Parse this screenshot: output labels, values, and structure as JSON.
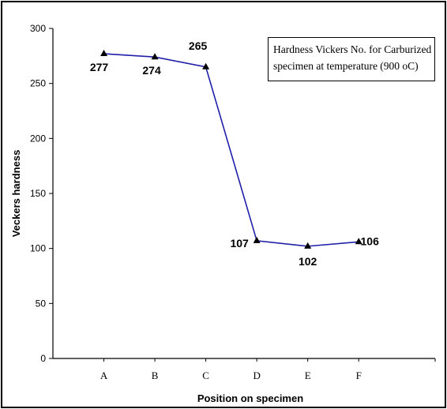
{
  "chart_data": {
    "type": "line",
    "categories": [
      "A",
      "B",
      "C",
      "D",
      "E",
      "F"
    ],
    "series": [
      {
        "name": "",
        "values": [
          277,
          274,
          265,
          107,
          102,
          106
        ]
      }
    ],
    "data_labels": [
      "277",
      "274",
      "265",
      "107",
      "102",
      "106"
    ],
    "title": "",
    "xlabel": "Position on specimen",
    "ylabel": "Veckers hardness",
    "ylim": [
      0,
      300
    ],
    "yticks": [
      0,
      50,
      100,
      150,
      200,
      250,
      300
    ],
    "legend_text": {
      "line1": "Hardness Vickers No. for Carburized",
      "line2": "specimen at temperature (900 oC)"
    },
    "legend_placement": "top-right",
    "grid": false,
    "colors": {
      "line": "#1f1fa8",
      "marker": "#000000",
      "axis": "#000000"
    }
  }
}
